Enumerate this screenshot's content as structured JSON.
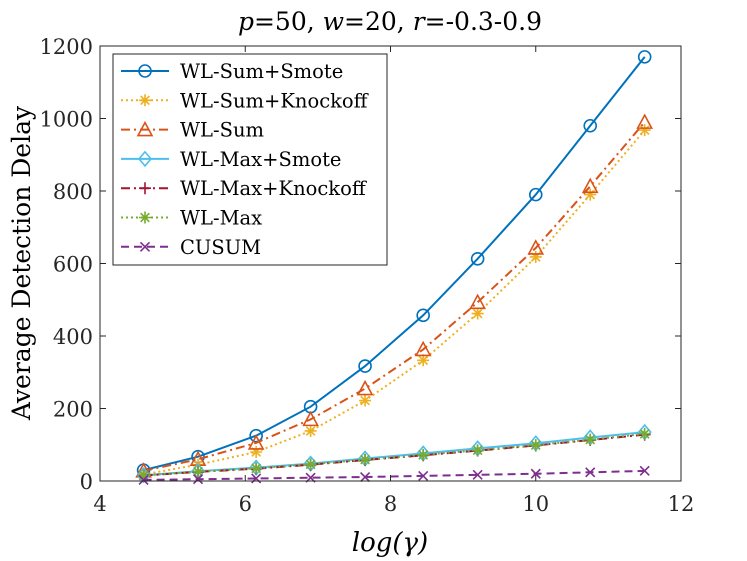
{
  "chart_data": {
    "type": "line",
    "title": "p=50, w=20, r=-0.3-0.9",
    "title_parts": [
      {
        "text": "p",
        "italic": true
      },
      {
        "text": "=50, ",
        "italic": false
      },
      {
        "text": "w",
        "italic": true
      },
      {
        "text": "=20, ",
        "italic": false
      },
      {
        "text": "r",
        "italic": true
      },
      {
        "text": "=-0.3-0.9",
        "italic": false
      }
    ],
    "xlabel": "log(γ)",
    "ylabel": "Average Detection Delay",
    "xlim": [
      4,
      12
    ],
    "ylim": [
      0,
      1200
    ],
    "xticks": [
      4,
      6,
      8,
      10,
      12
    ],
    "yticks": [
      0,
      200,
      400,
      600,
      800,
      1000,
      1200
    ],
    "grid": false,
    "legend_position": "top-left",
    "x": [
      4.6,
      5.35,
      6.15,
      6.9,
      7.65,
      8.45,
      9.2,
      10.0,
      10.75,
      11.5
    ],
    "series": [
      {
        "name": "WL-Sum+Smote",
        "color": "#0072BD",
        "dash": "solid",
        "marker": "circle",
        "values": [
          30,
          67,
          125,
          205,
          317,
          457,
          613,
          790,
          980,
          1170
        ]
      },
      {
        "name": "WL-Sum+Knockoff",
        "color": "#EDB120",
        "dash": "dotted",
        "marker": "asterisk",
        "values": [
          18,
          45,
          80,
          138,
          222,
          333,
          462,
          618,
          790,
          968
        ]
      },
      {
        "name": "WL-Sum",
        "color": "#D95319",
        "dash": "dashdot",
        "marker": "triangle",
        "values": [
          28,
          60,
          105,
          170,
          255,
          363,
          493,
          643,
          813,
          990
        ]
      },
      {
        "name": "WL-Max+Smote",
        "color": "#4DBEEE",
        "dash": "solid",
        "marker": "diamond",
        "values": [
          16,
          27,
          37,
          48,
          62,
          76,
          90,
          104,
          120,
          135
        ]
      },
      {
        "name": "WL-Max+Knockoff",
        "color": "#A2142F",
        "dash": "dashdot",
        "marker": "plus",
        "values": [
          15,
          25,
          34,
          45,
          58,
          71,
          84,
          98,
          113,
          128
        ]
      },
      {
        "name": "WL-Max",
        "color": "#77AC30",
        "dash": "dotted",
        "marker": "asterisk",
        "values": [
          15,
          26,
          35,
          46,
          59,
          72,
          85,
          99,
          114,
          130
        ]
      },
      {
        "name": "CUSUM",
        "color": "#7E2F8E",
        "dash": "dashed",
        "marker": "x",
        "values": [
          3,
          5,
          7,
          9,
          11,
          14,
          17,
          20,
          24,
          28
        ]
      }
    ]
  }
}
